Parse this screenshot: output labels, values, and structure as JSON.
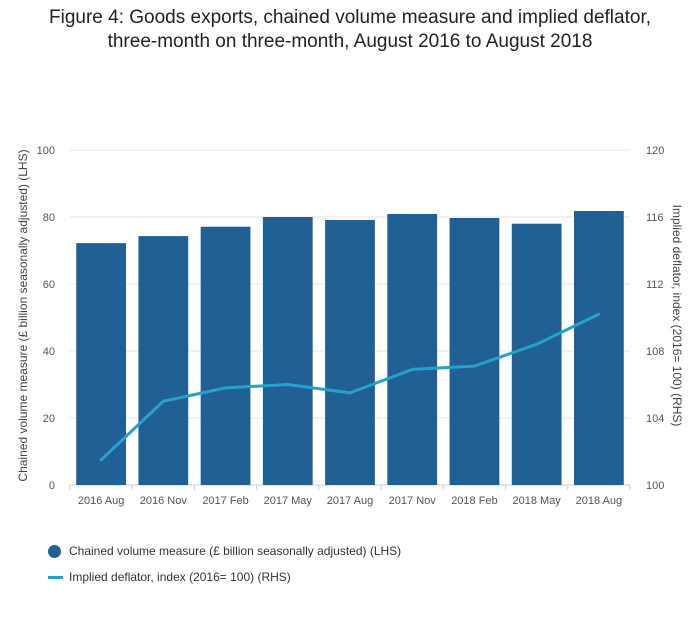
{
  "title_line1": "Figure 4: Goods exports, chained volume measure and implied deflator,",
  "title_line2": "three-month on three-month, August 2016 to August 2018",
  "chart_data": {
    "type": "bar",
    "categories": [
      "2016 Aug",
      "2016 Nov",
      "2017 Feb",
      "2017 May",
      "2017 Aug",
      "2017 Nov",
      "2018 Feb",
      "2018 May",
      "2018 Aug"
    ],
    "series": [
      {
        "name": "Chained volume measure (£ billion seasonally adjusted) (LHS)",
        "type": "bar",
        "axis": "left",
        "values": [
          72.2,
          74.3,
          77.1,
          80.0,
          79.1,
          80.9,
          79.7,
          78.0,
          81.8
        ]
      },
      {
        "name": "Implied deflator, index (2016= 100) (RHS)",
        "type": "line",
        "axis": "right",
        "values": [
          101.5,
          105.0,
          105.8,
          106.0,
          105.5,
          106.9,
          107.1,
          108.4,
          110.2
        ]
      }
    ],
    "ylabel": "Chained volume measure (£ billion seasonally adjusted) (LHS)",
    "y2label": "Implied deflator, index (2016= 100) (RHS)",
    "ylim": [
      0,
      100
    ],
    "y2lim": [
      100,
      120
    ],
    "yticks": [
      0,
      20,
      40,
      60,
      80,
      100
    ],
    "y2ticks": [
      100,
      104,
      108,
      112,
      116,
      120
    ],
    "grid": true,
    "legend": "bottom-left",
    "colors": {
      "bar": "#206095",
      "line": "#27a0cc",
      "grid": "#e6e6e6",
      "axis": "#cccccc"
    }
  }
}
